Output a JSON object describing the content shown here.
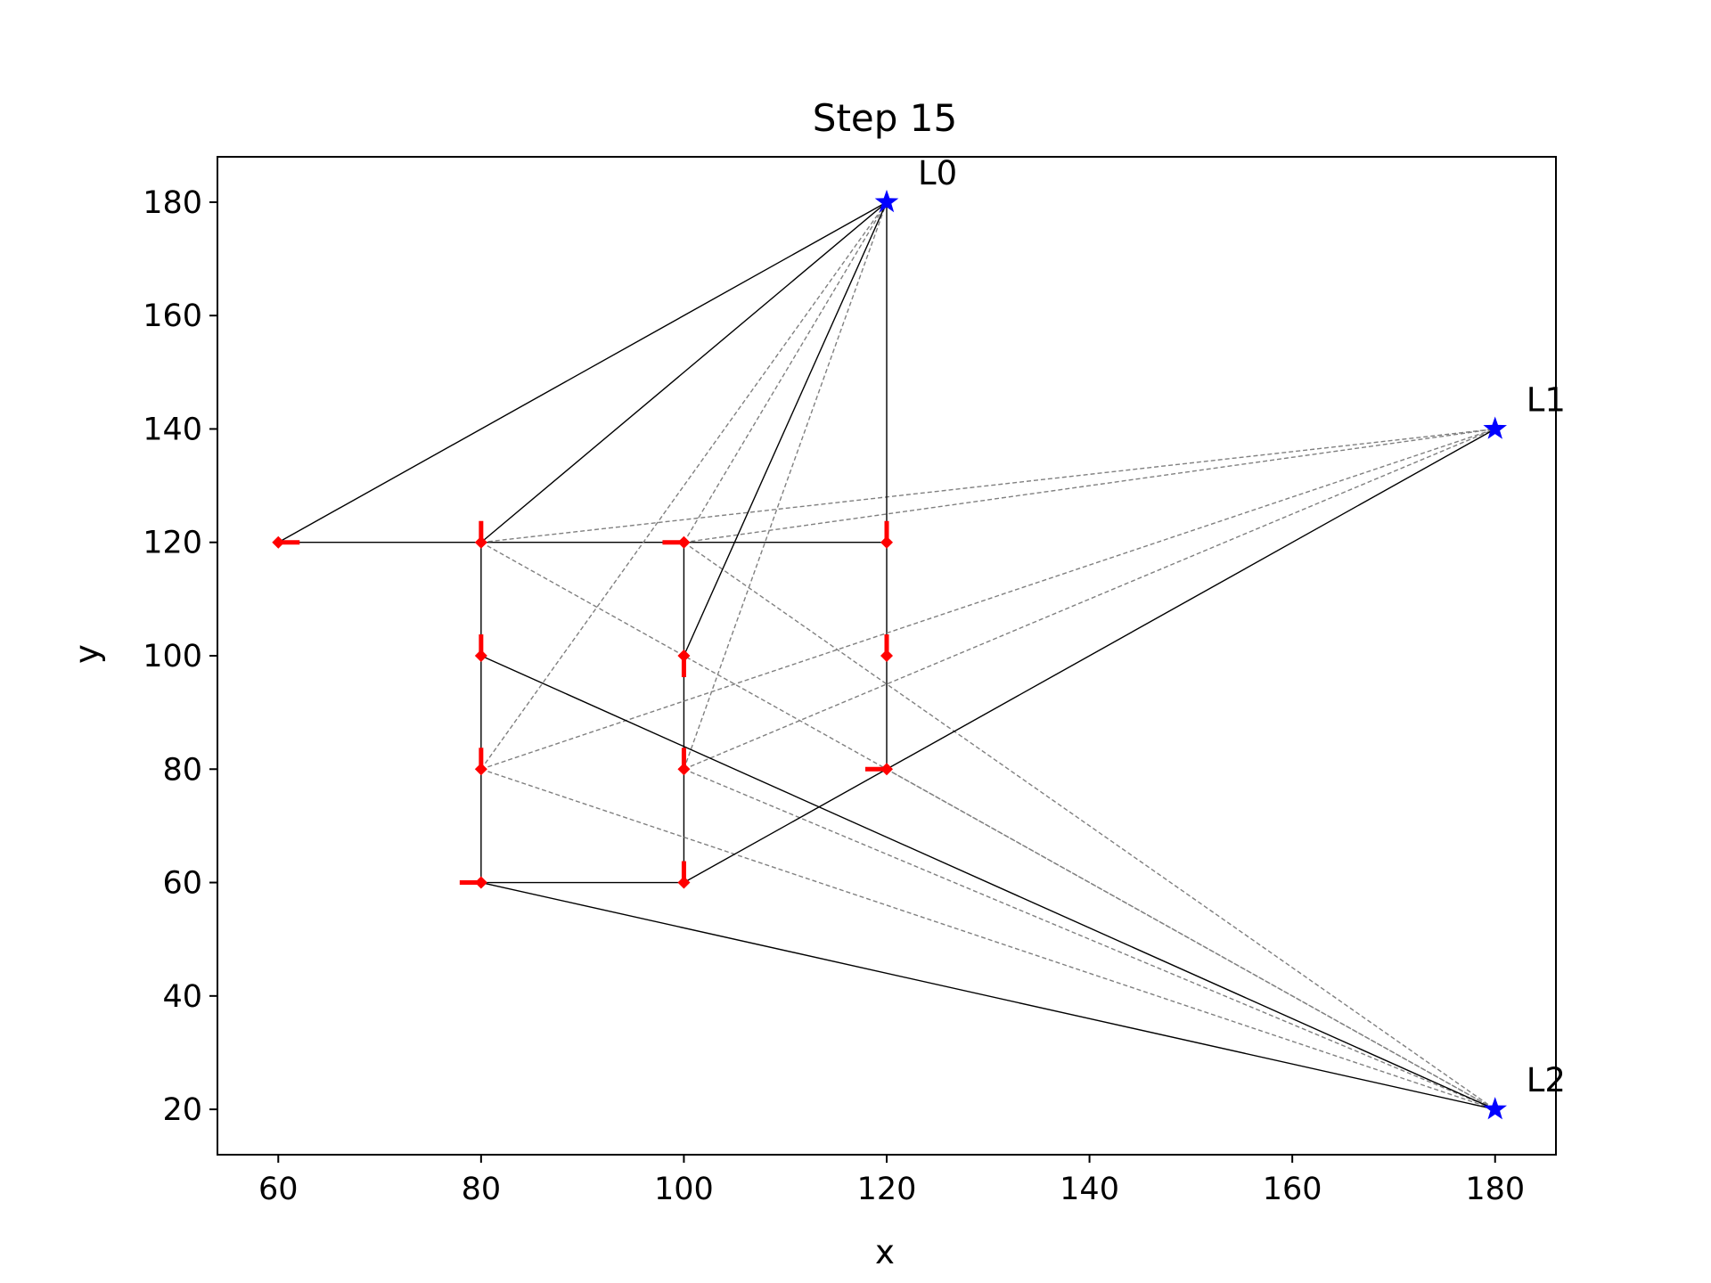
{
  "chart_data": {
    "type": "scatter",
    "title": "Step 15",
    "xlabel": "x",
    "ylabel": "y",
    "xlim": [
      54,
      186
    ],
    "ylim": [
      12,
      188
    ],
    "xticks": [
      60,
      80,
      100,
      120,
      140,
      160,
      180
    ],
    "yticks": [
      20,
      40,
      60,
      80,
      100,
      120,
      140,
      160,
      180
    ],
    "grid": false,
    "colors": {
      "pose": "#ff0000",
      "landmark": "#0000ff",
      "trajectory": "#000000",
      "observation_solid": "#000000",
      "observation_dashed": "#808080"
    },
    "landmarks": [
      {
        "name": "L0",
        "x": 120,
        "y": 180
      },
      {
        "name": "L1",
        "x": 180,
        "y": 140
      },
      {
        "name": "L2",
        "x": 180,
        "y": 20
      }
    ],
    "poses": [
      {
        "x": 60,
        "y": 120,
        "heading": "right"
      },
      {
        "x": 80,
        "y": 120,
        "heading": "up"
      },
      {
        "x": 80,
        "y": 100,
        "heading": "up"
      },
      {
        "x": 80,
        "y": 80,
        "heading": "up"
      },
      {
        "x": 80,
        "y": 60,
        "heading": "left"
      },
      {
        "x": 100,
        "y": 60,
        "heading": "up"
      },
      {
        "x": 100,
        "y": 80,
        "heading": "up"
      },
      {
        "x": 100,
        "y": 100,
        "heading": "down"
      },
      {
        "x": 100,
        "y": 120,
        "heading": "left"
      },
      {
        "x": 120,
        "y": 120,
        "heading": "up"
      },
      {
        "x": 120,
        "y": 100,
        "heading": "up"
      },
      {
        "x": 120,
        "y": 80,
        "heading": "left"
      }
    ],
    "trajectory_edges": [
      [
        [
          60,
          120
        ],
        [
          80,
          120
        ]
      ],
      [
        [
          80,
          120
        ],
        [
          100,
          120
        ]
      ],
      [
        [
          100,
          120
        ],
        [
          120,
          120
        ]
      ],
      [
        [
          80,
          120
        ],
        [
          80,
          60
        ]
      ],
      [
        [
          80,
          60
        ],
        [
          100,
          60
        ]
      ],
      [
        [
          100,
          60
        ],
        [
          100,
          120
        ]
      ],
      [
        [
          120,
          120
        ],
        [
          120,
          80
        ]
      ]
    ],
    "observations_solid": [
      [
        [
          60,
          120
        ],
        [
          120,
          180
        ]
      ],
      [
        [
          80,
          120
        ],
        [
          120,
          180
        ]
      ],
      [
        [
          100,
          100
        ],
        [
          120,
          180
        ]
      ],
      [
        [
          120,
          120
        ],
        [
          120,
          180
        ]
      ],
      [
        [
          80,
          100
        ],
        [
          180,
          20
        ]
      ],
      [
        [
          80,
          60
        ],
        [
          180,
          20
        ]
      ],
      [
        [
          100,
          60
        ],
        [
          180,
          140
        ]
      ]
    ],
    "observations_dashed": [
      [
        [
          80,
          80
        ],
        [
          120,
          180
        ]
      ],
      [
        [
          100,
          120
        ],
        [
          120,
          180
        ]
      ],
      [
        [
          100,
          80
        ],
        [
          120,
          180
        ]
      ],
      [
        [
          80,
          120
        ],
        [
          180,
          140
        ]
      ],
      [
        [
          100,
          120
        ],
        [
          180,
          140
        ]
      ],
      [
        [
          80,
          80
        ],
        [
          180,
          140
        ]
      ],
      [
        [
          100,
          80
        ],
        [
          180,
          140
        ]
      ],
      [
        [
          80,
          120
        ],
        [
          180,
          20
        ]
      ],
      [
        [
          100,
          120
        ],
        [
          180,
          20
        ]
      ],
      [
        [
          80,
          80
        ],
        [
          180,
          20
        ]
      ],
      [
        [
          100,
          80
        ],
        [
          180,
          20
        ]
      ],
      [
        [
          120,
          80
        ],
        [
          180,
          20
        ]
      ]
    ]
  }
}
